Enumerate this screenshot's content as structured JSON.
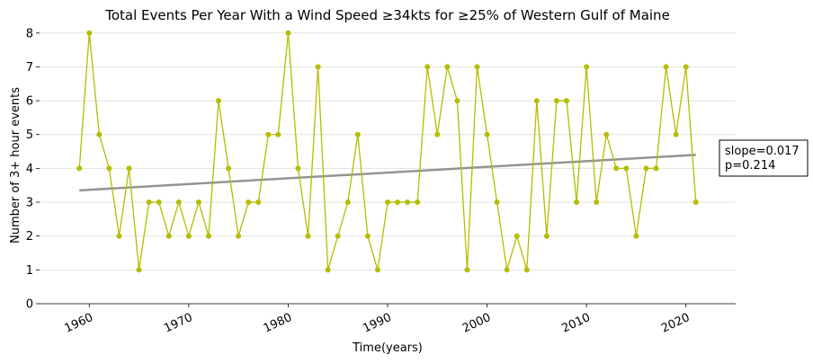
{
  "chart_data": {
    "type": "line",
    "title": "Total Events Per Year With a Wind Speed ≥34kts for ≥25% of Western Gulf of Maine",
    "xlabel": "Time(years)",
    "ylabel": "Number of 3+ hour events",
    "xlim": [
      1955,
      2025
    ],
    "ylim": [
      0,
      8.1
    ],
    "xticks": [
      1960,
      1970,
      1980,
      1990,
      2000,
      2010,
      2020
    ],
    "yticks": [
      0,
      1,
      2,
      3,
      4,
      5,
      6,
      7,
      8
    ],
    "grid": "horizontal",
    "series": [
      {
        "color": "#b5bd00",
        "x": [
          1959,
          1960,
          1961,
          1962,
          1963,
          1964,
          1965,
          1966,
          1967,
          1968,
          1969,
          1970,
          1971,
          1972,
          1973,
          1974,
          1975,
          1976,
          1977,
          1978,
          1979,
          1980,
          1981,
          1982,
          1983,
          1984,
          1985,
          1986,
          1987,
          1988,
          1989,
          1990,
          1991,
          1992,
          1993,
          1994,
          1995,
          1996,
          1997,
          1998,
          1999,
          2000,
          2001,
          2002,
          2003,
          2004,
          2005,
          2006,
          2007,
          2008,
          2009,
          2010,
          2011,
          2012,
          2013,
          2014,
          2015,
          2016,
          2017,
          2018,
          2019,
          2020,
          2021
        ],
        "values": [
          4,
          8,
          5,
          4,
          2,
          4,
          1,
          3,
          3,
          2,
          3,
          2,
          3,
          2,
          6,
          4,
          2,
          3,
          3,
          5,
          5,
          8,
          4,
          2,
          7,
          1,
          2,
          3,
          5,
          2,
          1,
          3,
          3,
          3,
          3,
          7,
          5,
          7,
          6,
          1,
          7,
          5,
          3,
          1,
          2,
          1,
          6,
          2,
          6,
          6,
          3,
          7,
          3,
          5,
          4,
          4,
          2,
          4,
          4,
          7,
          5,
          7,
          3
        ]
      }
    ],
    "trend": {
      "color": "#949494",
      "x": [
        1959,
        2021
      ],
      "values": [
        3.35,
        4.4
      ]
    },
    "annotation": {
      "lines": [
        "slope=0.017",
        "p=0.214"
      ]
    }
  }
}
